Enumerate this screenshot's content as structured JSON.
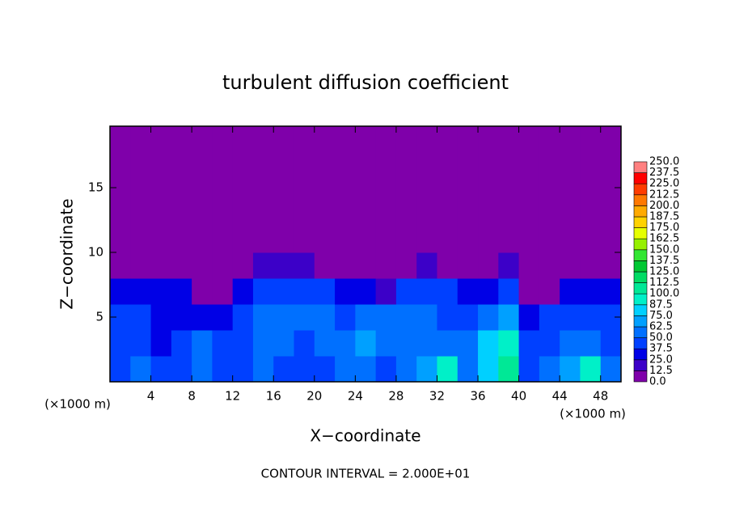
{
  "chart_data": {
    "type": "heatmap",
    "title": "turbulent diffusion coefficient",
    "xlabel": "X−coordinate",
    "ylabel": "Z−coordinate",
    "x_unit": "(×1000 m)",
    "footnote": "CONTOUR INTERVAL = 2.000E+01",
    "xlim": [
      0,
      50
    ],
    "ylim": [
      0,
      19.75
    ],
    "xticks": [
      4,
      8,
      12,
      16,
      20,
      24,
      28,
      32,
      36,
      40,
      44,
      48
    ],
    "yticks": [
      5,
      10,
      15
    ],
    "x": [
      1,
      3,
      5,
      7,
      9,
      11,
      13,
      15,
      17,
      19,
      21,
      23,
      25,
      27,
      29,
      31,
      33,
      35,
      37,
      39,
      41,
      43,
      45,
      47,
      49
    ],
    "y": [
      1,
      3,
      5,
      7,
      9,
      11,
      13,
      15,
      17,
      19
    ],
    "values": [
      [
        45,
        50,
        40,
        45,
        55,
        45,
        40,
        50,
        45,
        40,
        45,
        50,
        55,
        45,
        60,
        70,
        95,
        60,
        80,
        110,
        45,
        50,
        70,
        95,
        60
      ],
      [
        40,
        45,
        35,
        40,
        50,
        45,
        40,
        55,
        60,
        45,
        55,
        60,
        65,
        50,
        55,
        60,
        50,
        55,
        75,
        90,
        40,
        45,
        50,
        55,
        45
      ],
      [
        40,
        40,
        30,
        35,
        25,
        30,
        45,
        50,
        55,
        50,
        50,
        45,
        60,
        55,
        60,
        50,
        45,
        40,
        50,
        70,
        30,
        40,
        45,
        45,
        40
      ],
      [
        35,
        35,
        30,
        30,
        5,
        5,
        30,
        40,
        45,
        40,
        40,
        35,
        30,
        20,
        40,
        45,
        40,
        35,
        30,
        40,
        10,
        5,
        30,
        35,
        35
      ],
      [
        5,
        5,
        5,
        5,
        5,
        5,
        5,
        15,
        20,
        15,
        10,
        5,
        5,
        5,
        5,
        15,
        10,
        5,
        5,
        15,
        5,
        5,
        5,
        5,
        5
      ],
      [
        5,
        5,
        5,
        5,
        5,
        5,
        5,
        5,
        5,
        5,
        5,
        5,
        5,
        5,
        5,
        5,
        5,
        5,
        5,
        5,
        5,
        5,
        5,
        5,
        5
      ],
      [
        5,
        5,
        5,
        5,
        5,
        5,
        5,
        5,
        5,
        5,
        5,
        5,
        5,
        5,
        5,
        5,
        5,
        5,
        5,
        5,
        5,
        5,
        5,
        5,
        5
      ],
      [
        5,
        5,
        5,
        5,
        5,
        5,
        5,
        5,
        5,
        5,
        5,
        5,
        5,
        5,
        5,
        5,
        5,
        5,
        5,
        5,
        5,
        5,
        5,
        5,
        5
      ],
      [
        5,
        5,
        5,
        5,
        5,
        5,
        5,
        5,
        5,
        5,
        5,
        5,
        5,
        5,
        5,
        5,
        5,
        5,
        5,
        5,
        5,
        5,
        5,
        5,
        5
      ],
      [
        5,
        5,
        5,
        5,
        5,
        5,
        5,
        5,
        5,
        5,
        5,
        5,
        5,
        5,
        5,
        5,
        5,
        5,
        5,
        5,
        5,
        5,
        5,
        5,
        5
      ]
    ],
    "colorbar_ticks": [
      {
        "value": 0,
        "label": "0.0"
      },
      {
        "value": 12.5,
        "label": "12.5"
      },
      {
        "value": 25,
        "label": "25.0"
      },
      {
        "value": 37.5,
        "label": "37.5"
      },
      {
        "value": 50,
        "label": "50.0"
      },
      {
        "value": 62.5,
        "label": "62.5"
      },
      {
        "value": 75,
        "label": "75.0"
      },
      {
        "value": 87.5,
        "label": "87.5"
      },
      {
        "value": 100,
        "label": "100.0"
      },
      {
        "value": 112.5,
        "label": "112.5"
      },
      {
        "value": 125,
        "label": "125.0"
      },
      {
        "value": 137.5,
        "label": "137.5"
      },
      {
        "value": 150,
        "label": "150.0"
      },
      {
        "value": 162.5,
        "label": "162.5"
      },
      {
        "value": 175,
        "label": "175.0"
      },
      {
        "value": 187.5,
        "label": "187.5"
      },
      {
        "value": 200,
        "label": "200.0"
      },
      {
        "value": 212.5,
        "label": "212.5"
      },
      {
        "value": 225,
        "label": "225.0"
      },
      {
        "value": 237.5,
        "label": "237.5"
      },
      {
        "value": 250,
        "label": "250.0"
      }
    ],
    "colormap": [
      "#7f00aa",
      "#3c00c8",
      "#0000e6",
      "#0040ff",
      "#0070ff",
      "#00a0ff",
      "#00d0ff",
      "#00f0c8",
      "#00e896",
      "#00dc64",
      "#00c832",
      "#32e632",
      "#96f000",
      "#e6ff00",
      "#ffd200",
      "#ffaa00",
      "#ff7800",
      "#ff3c00",
      "#ff0000",
      "#ff8080"
    ]
  }
}
